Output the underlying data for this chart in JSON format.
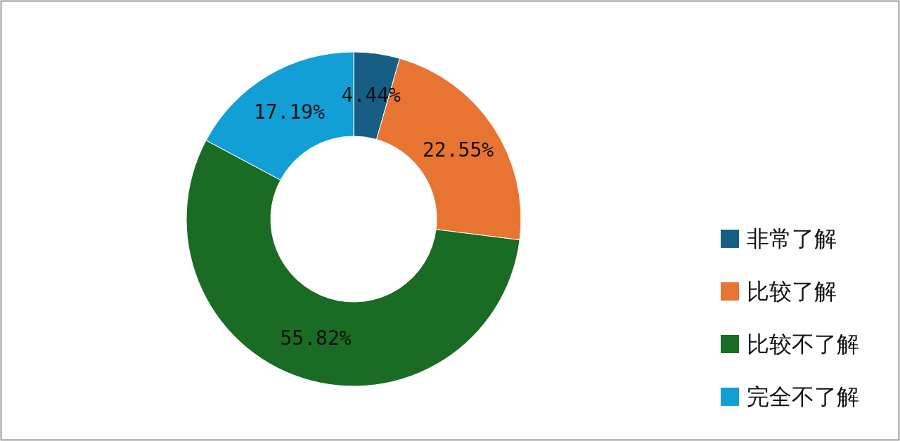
{
  "chart_data": {
    "type": "donut",
    "categories": [
      "非常了解",
      "比较了解",
      "比较不了解",
      "完全不了解"
    ],
    "values": [
      4.44,
      22.55,
      55.82,
      17.19
    ],
    "value_labels": [
      "4.44%",
      "22.55%",
      "55.82%",
      "17.19%"
    ],
    "colors": [
      "#165e83",
      "#e87431",
      "#1a6b24",
      "#129fd6"
    ],
    "legend": "bottom right"
  }
}
